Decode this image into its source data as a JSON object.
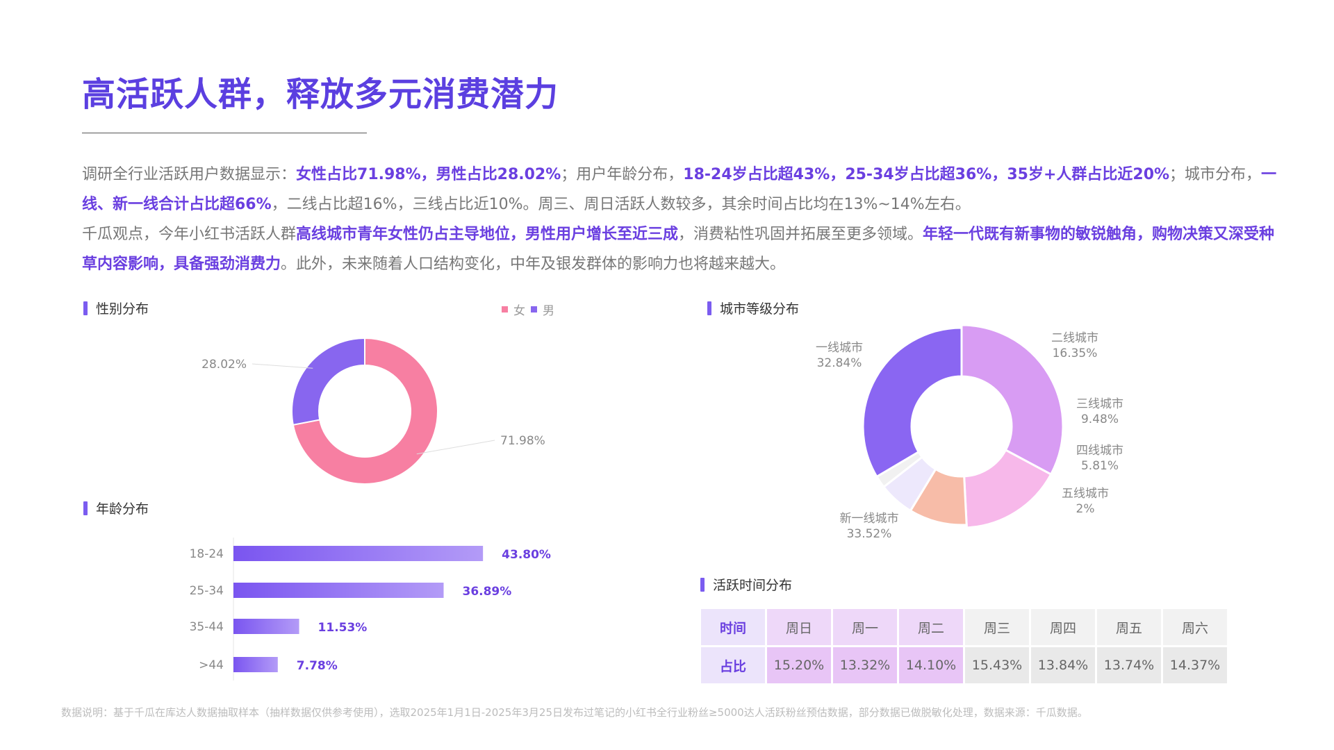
{
  "title": "高活跃人群，释放多元消费潜力",
  "para1": [
    {
      "t": "调研全行业活跃用户数据显示：",
      "hl": false
    },
    {
      "t": "女性占比71.98%，男性占比28.02%",
      "hl": true
    },
    {
      "t": "；用户年龄分布，",
      "hl": false
    },
    {
      "t": "18-24岁占比超43%，25-34岁占比超36%，35岁+人群占比近20%",
      "hl": true
    },
    {
      "t": "；城市分布，",
      "hl": false
    },
    {
      "t": "一线、新一线合计占比超66%",
      "hl": true
    },
    {
      "t": "，二线占比超16%，三线占比近10%。周三、周日活跃人数较多，其余时间占比均在13%~14%左右。",
      "hl": false
    }
  ],
  "para2": [
    {
      "t": "千瓜观点，今年小红书活跃人群",
      "hl": false
    },
    {
      "t": "高线城市青年女性仍占主导地位，男性用户增长至近三成",
      "hl": true
    },
    {
      "t": "，消费粘性巩固并拓展至更多领域。",
      "hl": false
    },
    {
      "t": "年轻一代既有新事物的敏锐触角，购物决策又深受种草内容影响，具备强劲消费力",
      "hl": true
    },
    {
      "t": "。此外，未来随着人口结构变化，中年及银发群体的影响力也将越来越大。",
      "hl": false
    }
  ],
  "sections": {
    "gender": "性别分布",
    "age": "年龄分布",
    "city": "城市等级分布",
    "activity": "活跃时间分布"
  },
  "footnote": "数据说明：基于千瓜在库达人数据抽取样本（抽样数据仅供参考使用），选取2025年1月1日-2025年3月25日发布过笔记的小红书全行业粉丝≥5000达人活跃粉丝预估数据，部分数据已做脱敏化处理，数据来源：千瓜数据。",
  "colors": {
    "brand": "#5b3fe0",
    "highlight": "#6a3fe0",
    "female": "#f77fa2",
    "male": "#8866ef"
  },
  "chart_data": [
    {
      "type": "pie",
      "chart": "gender",
      "legend": [
        "女",
        "男"
      ],
      "legend_placement": "top-right",
      "slices": [
        {
          "name": "女",
          "value": 71.98,
          "label": "71.98%",
          "color": "#f77fa2"
        },
        {
          "name": "男",
          "value": 28.02,
          "label": "28.02%",
          "color": "#8866ef"
        }
      ]
    },
    {
      "type": "bar",
      "chart": "age",
      "orientation": "horizontal",
      "categories": [
        "18-24",
        "25-34",
        "35-44",
        ">44"
      ],
      "values": [
        43.8,
        36.89,
        11.53,
        7.78
      ],
      "labels": [
        "43.80%",
        "36.89%",
        "11.53%",
        "7.78%"
      ],
      "xlim": [
        0,
        50
      ]
    },
    {
      "type": "pie",
      "chart": "city",
      "slices": [
        {
          "name": "一线城市",
          "value": 32.84,
          "label": "32.84%",
          "color": "#d89cf3"
        },
        {
          "name": "二线城市",
          "value": 16.35,
          "label": "16.35%",
          "color": "#f7b8ea"
        },
        {
          "name": "三线城市",
          "value": 9.48,
          "label": "9.48%",
          "color": "#f7bca8"
        },
        {
          "name": "四线城市",
          "value": 5.81,
          "label": "5.81%",
          "color": "#ede8fc"
        },
        {
          "name": "五线城市",
          "value": 2,
          "label": "2%",
          "color": "#f1f1f1"
        },
        {
          "name": "新一线城市",
          "value": 33.52,
          "label": "33.52%",
          "color": "#8a66f2"
        }
      ]
    },
    {
      "type": "table",
      "chart": "activity",
      "row_labels": [
        "时间",
        "占比"
      ],
      "columns": [
        "周日",
        "周一",
        "周二",
        "周三",
        "周四",
        "周五",
        "周六"
      ],
      "values": [
        "15.20%",
        "13.32%",
        "14.10%",
        "15.43%",
        "13.84%",
        "13.74%",
        "14.37%"
      ],
      "highlight_columns": [
        "周日",
        "周一",
        "周二"
      ]
    }
  ]
}
